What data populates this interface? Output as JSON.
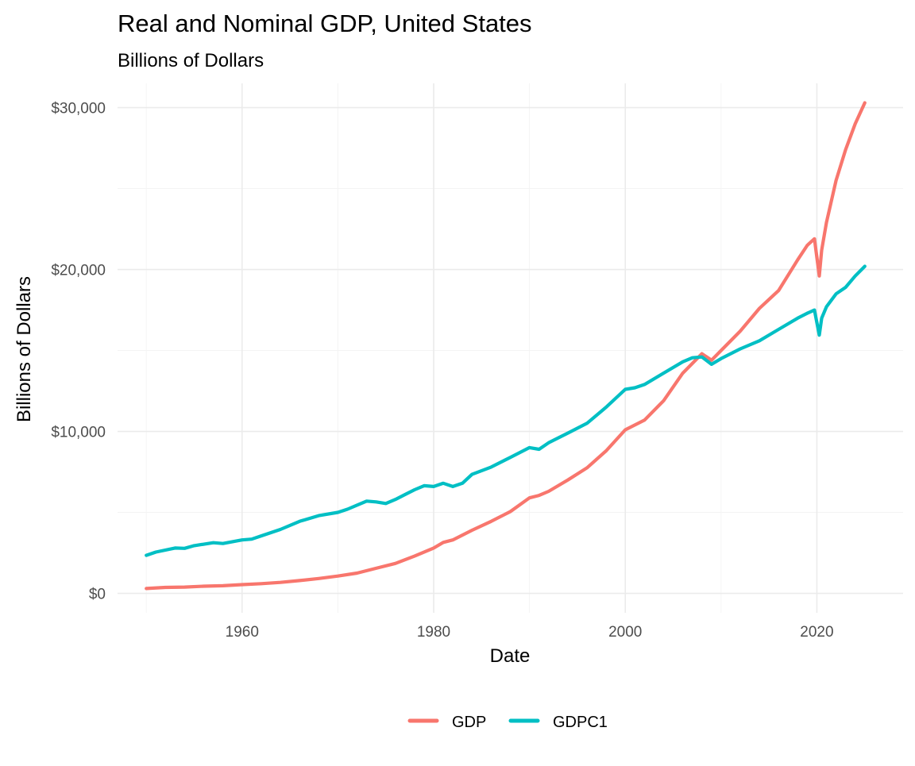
{
  "chart_data": {
    "type": "line",
    "title": "Real and Nominal GDP, United States",
    "subtitle": "Billions of Dollars",
    "xlabel": "Date",
    "ylabel": "Billions of Dollars",
    "xlim": [
      1947,
      2029
    ],
    "ylim": [
      -1200,
      31500
    ],
    "x_ticks": [
      1960,
      1980,
      2000,
      2020
    ],
    "x_tick_labels": [
      "1960",
      "1980",
      "2000",
      "2020"
    ],
    "y_ticks": [
      0,
      10000,
      20000,
      30000
    ],
    "y_tick_labels": [
      "$0",
      "$10,000",
      "$20,000",
      "$30,000"
    ],
    "grid": true,
    "legend_position": "bottom",
    "series": [
      {
        "name": "GDP",
        "color": "#f8766d",
        "points": [
          [
            1950,
            300
          ],
          [
            1952,
            370
          ],
          [
            1954,
            390
          ],
          [
            1956,
            440
          ],
          [
            1958,
            470
          ],
          [
            1960,
            540
          ],
          [
            1962,
            600
          ],
          [
            1964,
            680
          ],
          [
            1966,
            790
          ],
          [
            1968,
            920
          ],
          [
            1970,
            1070
          ],
          [
            1972,
            1250
          ],
          [
            1974,
            1550
          ],
          [
            1976,
            1850
          ],
          [
            1978,
            2300
          ],
          [
            1980,
            2800
          ],
          [
            1981,
            3150
          ],
          [
            1982,
            3300
          ],
          [
            1984,
            3900
          ],
          [
            1986,
            4450
          ],
          [
            1988,
            5050
          ],
          [
            1990,
            5900
          ],
          [
            1991,
            6050
          ],
          [
            1992,
            6300
          ],
          [
            1994,
            7000
          ],
          [
            1996,
            7750
          ],
          [
            1998,
            8800
          ],
          [
            2000,
            10100
          ],
          [
            2002,
            10700
          ],
          [
            2004,
            11900
          ],
          [
            2006,
            13600
          ],
          [
            2008,
            14800
          ],
          [
            2009,
            14400
          ],
          [
            2010,
            15000
          ],
          [
            2012,
            16200
          ],
          [
            2014,
            17600
          ],
          [
            2016,
            18700
          ],
          [
            2018,
            20600
          ],
          [
            2019,
            21500
          ],
          [
            2019.75,
            21900
          ],
          [
            2020.25,
            19600
          ],
          [
            2020.5,
            21200
          ],
          [
            2021,
            22900
          ],
          [
            2022,
            25500
          ],
          [
            2023,
            27400
          ],
          [
            2024,
            29000
          ],
          [
            2025,
            30300
          ]
        ]
      },
      {
        "name": "GDPC1",
        "color": "#00bfc4",
        "points": [
          [
            1950,
            2350
          ],
          [
            1951,
            2550
          ],
          [
            1953,
            2800
          ],
          [
            1954,
            2780
          ],
          [
            1955,
            2950
          ],
          [
            1957,
            3130
          ],
          [
            1958,
            3080
          ],
          [
            1960,
            3300
          ],
          [
            1961,
            3350
          ],
          [
            1962,
            3550
          ],
          [
            1964,
            3950
          ],
          [
            1966,
            4450
          ],
          [
            1968,
            4800
          ],
          [
            1970,
            5000
          ],
          [
            1971,
            5200
          ],
          [
            1973,
            5700
          ],
          [
            1974,
            5650
          ],
          [
            1975,
            5550
          ],
          [
            1976,
            5800
          ],
          [
            1978,
            6400
          ],
          [
            1979,
            6650
          ],
          [
            1980,
            6600
          ],
          [
            1981,
            6800
          ],
          [
            1982,
            6600
          ],
          [
            1983,
            6800
          ],
          [
            1984,
            7350
          ],
          [
            1986,
            7800
          ],
          [
            1988,
            8400
          ],
          [
            1990,
            9000
          ],
          [
            1991,
            8900
          ],
          [
            1992,
            9300
          ],
          [
            1994,
            9900
          ],
          [
            1996,
            10500
          ],
          [
            1998,
            11500
          ],
          [
            2000,
            12600
          ],
          [
            2001,
            12700
          ],
          [
            2002,
            12900
          ],
          [
            2004,
            13600
          ],
          [
            2006,
            14300
          ],
          [
            2007,
            14550
          ],
          [
            2008,
            14600
          ],
          [
            2009,
            14150
          ],
          [
            2010,
            14500
          ],
          [
            2012,
            15100
          ],
          [
            2014,
            15600
          ],
          [
            2016,
            16300
          ],
          [
            2018,
            17000
          ],
          [
            2019,
            17300
          ],
          [
            2019.75,
            17500
          ],
          [
            2020.25,
            15950
          ],
          [
            2020.5,
            17000
          ],
          [
            2021,
            17700
          ],
          [
            2022,
            18500
          ],
          [
            2023,
            18900
          ],
          [
            2024,
            19600
          ],
          [
            2025,
            20200
          ]
        ]
      }
    ]
  }
}
